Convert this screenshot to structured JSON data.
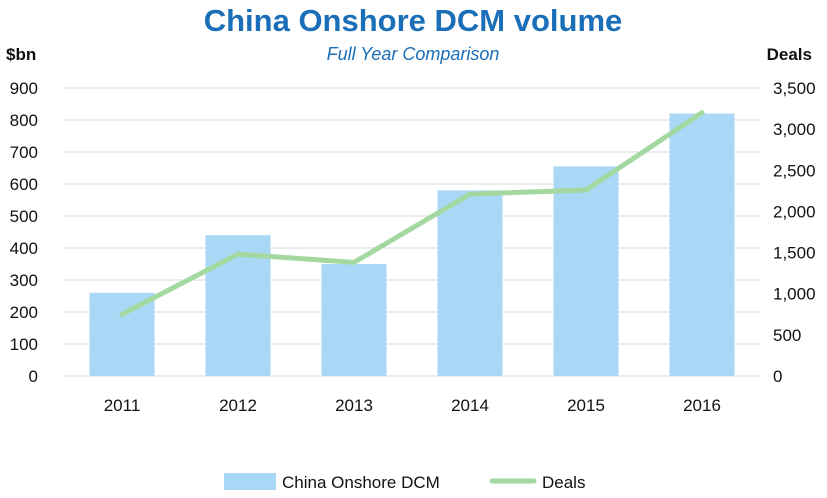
{
  "chart_data": {
    "type": "bar+line",
    "title": "China Onshore DCM volume",
    "subtitle": "Full Year Comparison",
    "categories": [
      "2011",
      "2012",
      "2013",
      "2014",
      "2015",
      "2016"
    ],
    "series": [
      {
        "name": "China Onshore DCM",
        "type": "bar",
        "axis": "left",
        "values": [
          260,
          440,
          350,
          580,
          655,
          820
        ]
      },
      {
        "name": "Deals",
        "type": "line",
        "axis": "right",
        "values": [
          750,
          1480,
          1380,
          2210,
          2260,
          3200
        ]
      }
    ],
    "ylabel_left": "$bn",
    "ylabel_right": "Deals",
    "ylim_left": [
      0,
      900
    ],
    "ylim_right": [
      0,
      3500
    ],
    "yticks_left": [
      "0",
      "100",
      "200",
      "300",
      "400",
      "500",
      "600",
      "700",
      "800",
      "900"
    ],
    "yticks_right": [
      "0",
      "500",
      "1,000",
      "1,500",
      "2,000",
      "2,500",
      "3,000",
      "3,500"
    ],
    "grid": true,
    "legend_position": "bottom",
    "colors": {
      "title": "#1a6fb8",
      "bar": "#a8d8f5",
      "line": "#a3d9a0",
      "grid": "#d9d9d9"
    }
  }
}
